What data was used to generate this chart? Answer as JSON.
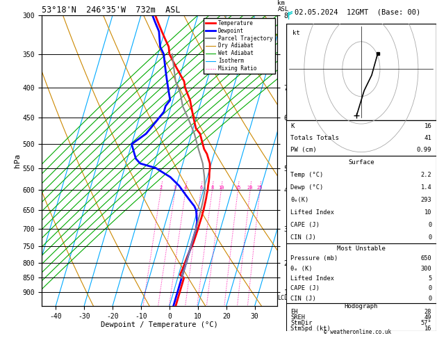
{
  "title_left": "53°18'N  246°35'W  732m  ASL",
  "title_right": "02.05.2024  12GMT  (Base: 00)",
  "xlabel": "Dewpoint / Temperature (°C)",
  "ylabel_left": "hPa",
  "pressure_ticks": [
    300,
    350,
    400,
    450,
    500,
    550,
    600,
    650,
    700,
    750,
    800,
    850,
    900
  ],
  "temp_ticks": [
    -40,
    -30,
    -20,
    -10,
    0,
    10,
    20,
    30
  ],
  "P_MIN": 300,
  "P_MAX": 950,
  "T_MIN": -45,
  "T_MAX": 38,
  "SKEW": 30,
  "km_labels": {
    "300": "8",
    "350": "",
    "400": "7",
    "450": "6",
    "500": "",
    "550": "5",
    "600": "4",
    "650": "",
    "700": "3",
    "750": "",
    "800": "2",
    "850": "",
    "900": "1"
  },
  "temperature_profile": {
    "pressure": [
      300,
      310,
      320,
      330,
      340,
      350,
      360,
      370,
      380,
      390,
      400,
      410,
      420,
      430,
      440,
      450,
      460,
      470,
      480,
      490,
      500,
      510,
      520,
      530,
      540,
      550,
      560,
      570,
      580,
      590,
      600,
      610,
      620,
      630,
      640,
      650,
      660,
      670,
      680,
      690,
      700,
      720,
      740,
      760,
      780,
      800,
      820,
      840,
      850,
      870,
      900,
      950
    ],
    "temp": [
      -35,
      -33,
      -31,
      -29,
      -27,
      -26,
      -24,
      -22,
      -20,
      -18,
      -17,
      -15.5,
      -14,
      -13,
      -12,
      -11,
      -10,
      -9,
      -7,
      -6,
      -5,
      -4,
      -2.5,
      -1.5,
      -0.5,
      0,
      0.3,
      0.7,
      1,
      1.2,
      1.5,
      1.6,
      1.8,
      1.9,
      2.0,
      2.1,
      2.1,
      2.15,
      2.1,
      2.1,
      2.1,
      2.0,
      1.9,
      1.5,
      1.2,
      1.0,
      0.8,
      0.5,
      2.2,
      2.2,
      2.2,
      2.2
    ],
    "color": "#ff0000",
    "linewidth": 2.0
  },
  "dewpoint_profile": {
    "pressure": [
      300,
      310,
      320,
      330,
      340,
      350,
      360,
      370,
      380,
      390,
      400,
      410,
      420,
      430,
      440,
      450,
      460,
      470,
      480,
      490,
      500,
      510,
      520,
      530,
      540,
      550,
      560,
      570,
      580,
      590,
      600,
      610,
      620,
      630,
      640,
      650,
      660,
      670,
      680,
      690,
      700,
      720,
      740,
      760,
      780,
      800,
      820,
      840,
      850,
      870,
      900,
      950
    ],
    "temp": [
      -36,
      -34,
      -32,
      -31,
      -30,
      -28,
      -27,
      -26,
      -25,
      -24,
      -23,
      -22,
      -21,
      -22,
      -22,
      -23,
      -24,
      -25,
      -26,
      -28,
      -30,
      -29,
      -28,
      -27,
      -25,
      -19,
      -16,
      -13,
      -11,
      -9,
      -7.5,
      -6,
      -4.5,
      -3,
      -1.5,
      -0.5,
      0,
      0.5,
      1.0,
      1.2,
      1.4,
      1.4,
      1.4,
      1.4,
      1.4,
      1.4,
      1.4,
      1.4,
      1.4,
      1.4,
      1.4,
      1.4
    ],
    "color": "#0000ff",
    "linewidth": 2.0
  },
  "parcel_trajectory": {
    "pressure": [
      350,
      370,
      390,
      410,
      430,
      450,
      480,
      510,
      540,
      570,
      600,
      630,
      660,
      690,
      720,
      750,
      780,
      820,
      850
    ],
    "temp": [
      -25,
      -23,
      -21,
      -18,
      -16,
      -13,
      -9,
      -6,
      -3,
      -1,
      0.5,
      1.0,
      1.2,
      1.35,
      1.4,
      1.4,
      1.4,
      1.4,
      1.4
    ],
    "color": "#888888",
    "linewidth": 1.5
  },
  "isotherm_temps": [
    -50,
    -40,
    -30,
    -20,
    -10,
    0,
    10,
    20,
    30,
    40
  ],
  "isotherm_color": "#00aaff",
  "isotherm_lw": 0.8,
  "dry_adiabat_thetas": [
    230,
    250,
    270,
    290,
    310,
    330,
    350,
    370,
    390,
    410,
    430
  ],
  "dry_adiabat_color": "#cc8800",
  "dry_adiabat_lw": 0.8,
  "wet_adiabat_T0s": [
    -20,
    -16,
    -12,
    -8,
    -4,
    0,
    4,
    8,
    12,
    16,
    20,
    24,
    28,
    32,
    36
  ],
  "wet_adiabat_color": "#00aa00",
  "wet_adiabat_lw": 0.8,
  "mixing_ratio_values": [
    2,
    3,
    4,
    6,
    8,
    10,
    15,
    20,
    25
  ],
  "mixing_ratio_color": "#ff00aa",
  "mixing_ratio_lw": 0.7,
  "legend_items": [
    {
      "label": "Temperature",
      "color": "#ff0000",
      "lw": 2.0,
      "ls": "-"
    },
    {
      "label": "Dewpoint",
      "color": "#0000ff",
      "lw": 2.0,
      "ls": "-"
    },
    {
      "label": "Parcel Trajectory",
      "color": "#888888",
      "lw": 1.5,
      "ls": "-"
    },
    {
      "label": "Dry Adiabat",
      "color": "#cc8800",
      "lw": 0.8,
      "ls": "-"
    },
    {
      "label": "Wet Adiabat",
      "color": "#00aa00",
      "lw": 0.8,
      "ls": "-"
    },
    {
      "label": "Isotherm",
      "color": "#00aaff",
      "lw": 0.8,
      "ls": "-"
    },
    {
      "label": "Mixing Ratio",
      "color": "#ff00aa",
      "lw": 0.7,
      "ls": ":"
    }
  ],
  "wind_barbs": [
    {
      "pressure": 300,
      "color": "#00cccc",
      "flag": true,
      "half": false
    },
    {
      "pressure": 400,
      "color": "#0000ff",
      "flag": false,
      "half": true
    },
    {
      "pressure": 500,
      "color": "#0000ff",
      "flag": false,
      "half": true
    },
    {
      "pressure": 600,
      "color": "#00aa00",
      "flag": false,
      "half": false
    },
    {
      "pressure": 700,
      "color": "#00aa00",
      "flag": false,
      "half": false
    },
    {
      "pressure": 800,
      "color": "#00aa00",
      "flag": false,
      "half": false
    },
    {
      "pressure": 850,
      "color": "#cccc00",
      "flag": false,
      "half": false
    },
    {
      "pressure": 900,
      "color": "#cccc00",
      "flag": false,
      "half": false
    }
  ],
  "info": {
    "K": 16,
    "Totals_Totals": 41,
    "PW_cm": "0.99",
    "Surf_Temp": "2.2",
    "Surf_Dewp": "1.4",
    "Surf_ThetaE": 293,
    "Surf_LI": 10,
    "Surf_CAPE": 0,
    "Surf_CIN": 0,
    "MU_Pressure": 650,
    "MU_ThetaE": 300,
    "MU_LI": 5,
    "MU_CAPE": 0,
    "MU_CIN": 0,
    "EH": 28,
    "SREH": 49,
    "StmDir": "57°",
    "StmSpd_kt": 16
  }
}
